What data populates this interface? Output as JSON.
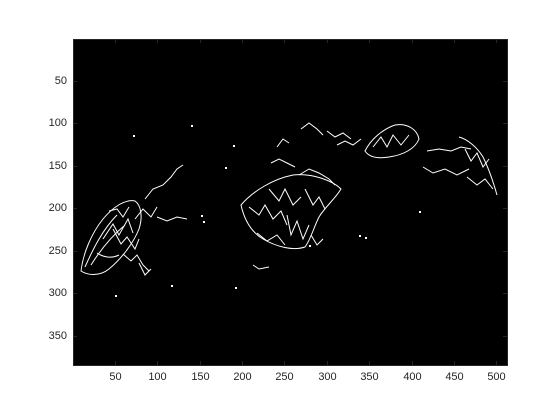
{
  "image_axes": {
    "x_ticks": [
      "50",
      "100",
      "150",
      "200",
      "250",
      "300",
      "350",
      "400",
      "450",
      "500"
    ],
    "y_ticks": [
      "50",
      "100",
      "150",
      "200",
      "250",
      "300",
      "350"
    ],
    "x_range": [
      0.5,
      512.5
    ],
    "y_range": [
      0.5,
      384.5
    ],
    "background": "#000000",
    "foreground": "#ffffff",
    "axis_color": "#262626",
    "figure_background": "#ffffff"
  }
}
